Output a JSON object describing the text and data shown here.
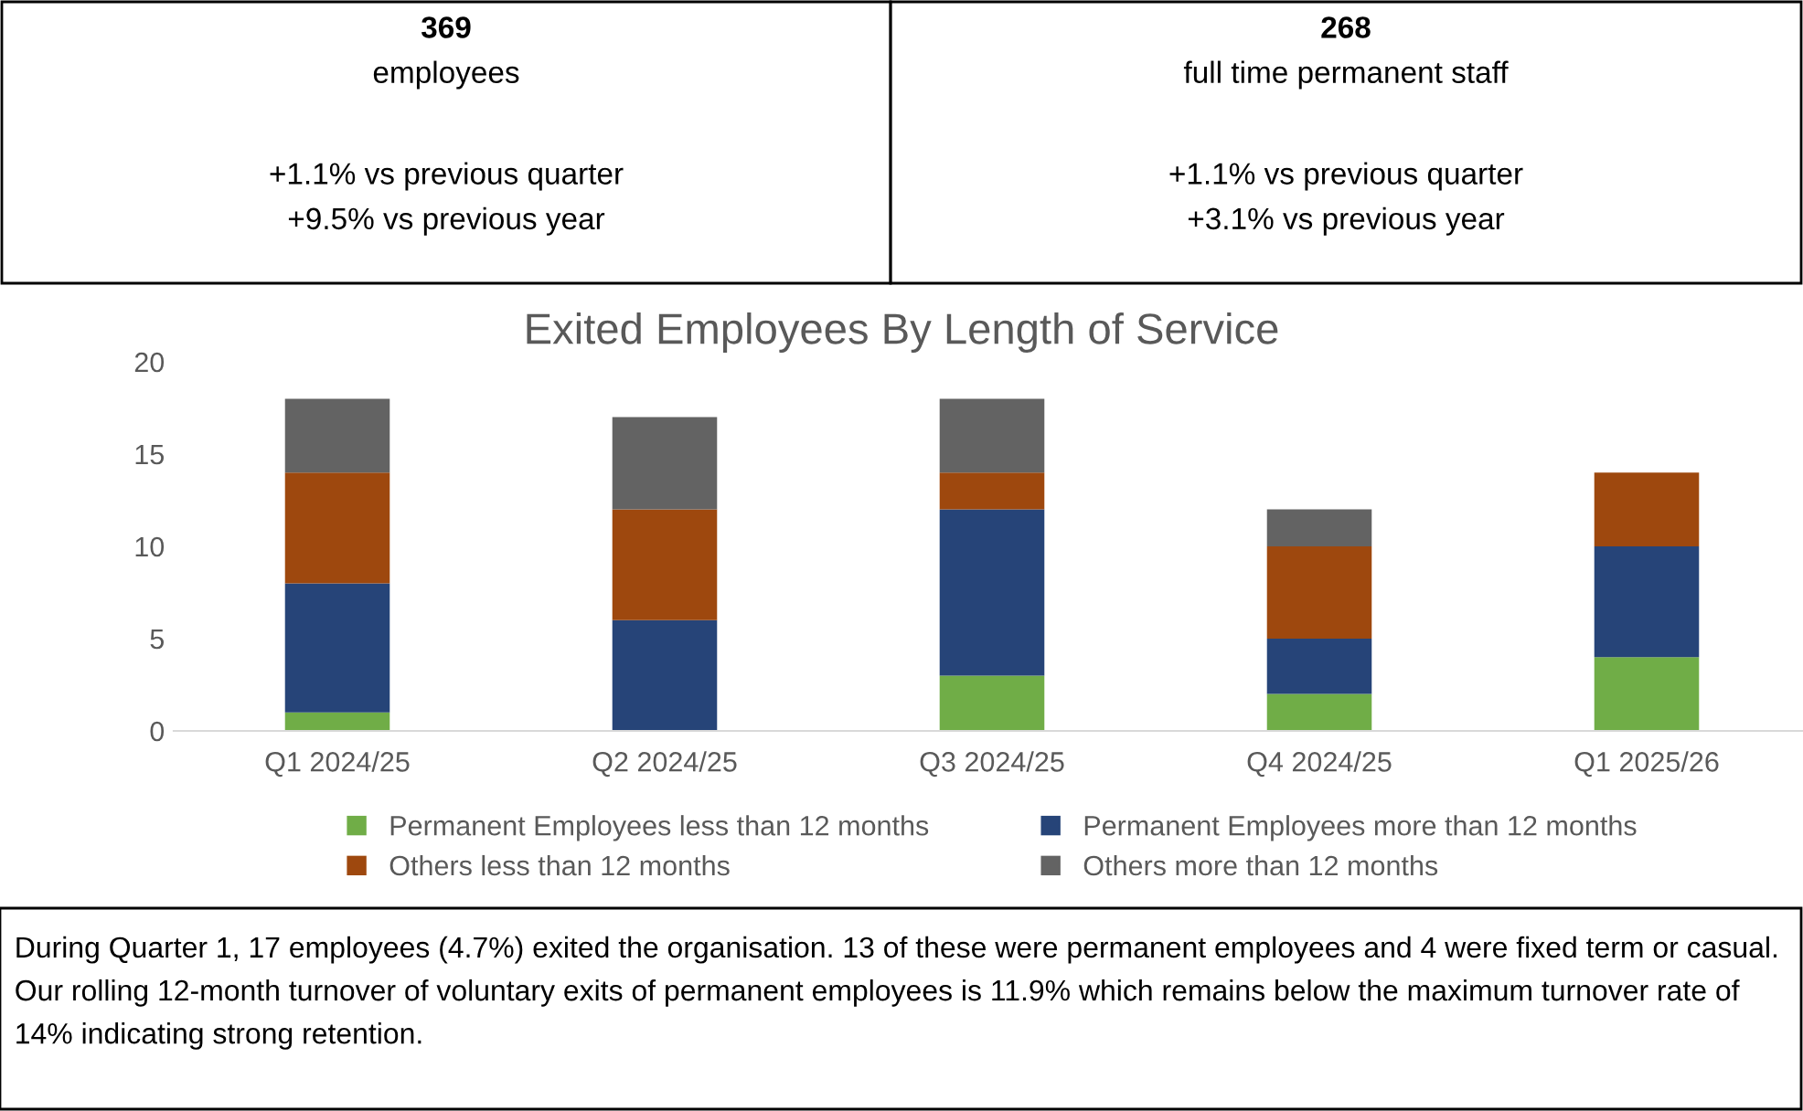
{
  "chart_data": [
    {
      "type": "other",
      "title": "369",
      "subtitle": "employees",
      "annotations": [
        "+1.1% vs previous quarter",
        "+9.5% vs previous year"
      ]
    },
    {
      "type": "other",
      "title": "268",
      "subtitle": "full time permanent staff",
      "annotations": [
        "+1.1% vs previous quarter",
        "+3.1% vs previous year"
      ]
    },
    {
      "type": "bar",
      "title": "Exited Employees By Length of Service",
      "stacked": true,
      "legend": "bottom",
      "categories": [
        "Q1 2024/25",
        "Q2 2024/25",
        "Q3 2024/25",
        "Q4 2024/25",
        "Q1 2025/26"
      ],
      "ylim": [
        0,
        20
      ],
      "yticks": [
        0,
        5,
        10,
        15,
        20
      ],
      "series": [
        {
          "name": "Permanent Employees less than 12 months",
          "color": "#70ad47",
          "values": [
            1,
            0,
            3,
            2,
            4
          ]
        },
        {
          "name": "Permanent Employees more than 12 months",
          "color": "#264478",
          "values": [
            7,
            6,
            9,
            3,
            6
          ]
        },
        {
          "name": "Others less than 12 months",
          "color": "#9e480e",
          "values": [
            6,
            6,
            2,
            5,
            4
          ]
        },
        {
          "name": "Others more than 12 months",
          "color": "#636363",
          "values": [
            4,
            5,
            4,
            2,
            0
          ]
        }
      ],
      "annotations": [
        "During Quarter 1, 17 employees (4.7%) exited the organisation. 13 of these were permanent employees and 4 were fixed term or casual. Our rolling 12-month turnover of voluntary exits of permanent employees is 11.9% which remains below the maximum turnover rate of 14% indicating strong retention."
      ]
    }
  ]
}
